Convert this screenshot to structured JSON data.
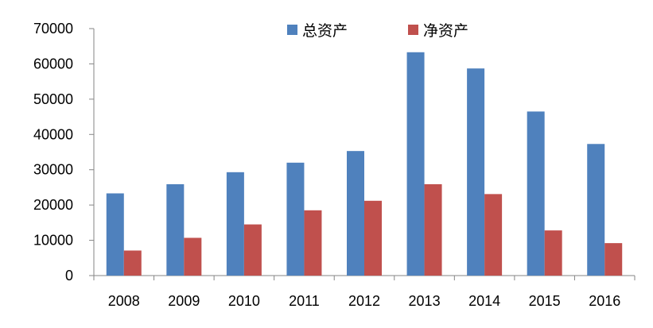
{
  "chart_data": {
    "type": "bar",
    "categories": [
      "2008",
      "2009",
      "2010",
      "2011",
      "2012",
      "2013",
      "2014",
      "2015",
      "2016"
    ],
    "series": [
      {
        "name": "总资产",
        "color": "#4F81BD",
        "values": [
          23300,
          25900,
          29300,
          32000,
          35300,
          63300,
          58700,
          46500,
          37300
        ]
      },
      {
        "name": "净资产",
        "color": "#C0504D",
        "values": [
          7100,
          10700,
          14500,
          18500,
          21200,
          25900,
          23100,
          12800,
          9200
        ]
      }
    ],
    "title": "",
    "xlabel": "",
    "ylabel": "",
    "ylim": [
      0,
      70000
    ],
    "yticks": [
      "0",
      "10000",
      "20000",
      "30000",
      "40000",
      "50000",
      "60000",
      "70000"
    ],
    "grid": false,
    "legend_position": "top-center"
  }
}
